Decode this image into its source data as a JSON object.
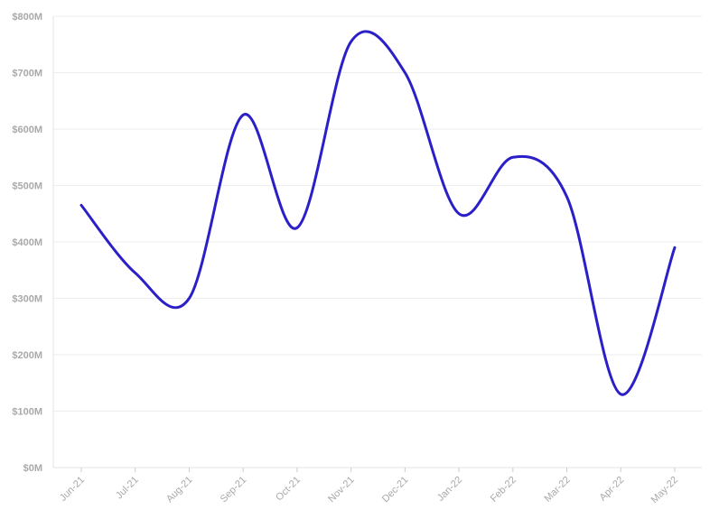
{
  "chart_data": {
    "type": "line",
    "title": "",
    "xlabel": "",
    "ylabel": "",
    "categories": [
      "Jun-21",
      "Jul-21",
      "Aug-21",
      "Sep-21",
      "Oct-21",
      "Nov-21",
      "Dec-21",
      "Jan-22",
      "Feb-22",
      "Mar-22",
      "Apr-22",
      "May-22"
    ],
    "series": [
      {
        "color": "#2b1fc7",
        "values": [
          465,
          345,
          300,
          625,
          425,
          755,
          700,
          450,
          550,
          480,
          130,
          390
        ]
      }
    ],
    "ylim": [
      0,
      800
    ],
    "yticks": [
      {
        "value": 0,
        "label": "$0M"
      },
      {
        "value": 100,
        "label": "$100M"
      },
      {
        "value": 200,
        "label": "$200M"
      },
      {
        "value": 300,
        "label": "$300M"
      },
      {
        "value": 400,
        "label": "$400M"
      },
      {
        "value": 500,
        "label": "$500M"
      },
      {
        "value": 600,
        "label": "$600M"
      },
      {
        "value": 700,
        "label": "$700M"
      },
      {
        "value": 800,
        "label": "$800M"
      }
    ],
    "grid": true,
    "curve": "smooth"
  }
}
